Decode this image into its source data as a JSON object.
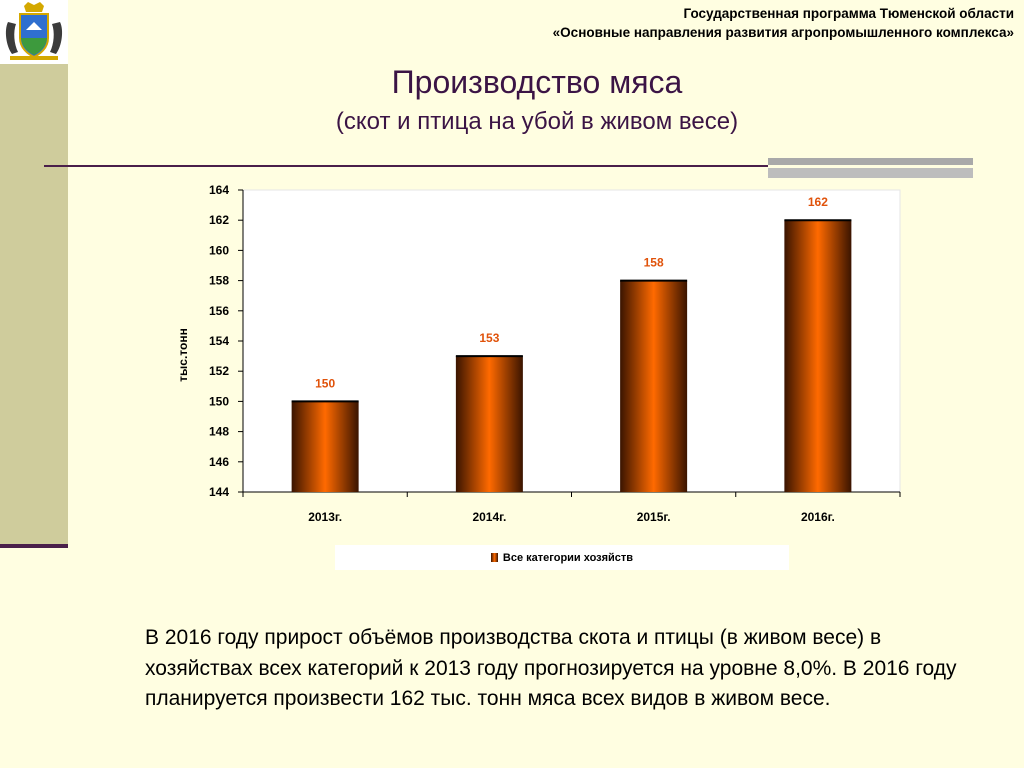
{
  "header": {
    "line1": "Государственная программа Тюменской области",
    "line2": "«Основные направления развития агропромышленного комплекса»"
  },
  "title": "Производство мяса",
  "subtitle": "(скот и птица на убой в живом весе)",
  "emblem_icon": "tyumen-coat-of-arms",
  "chart_data": {
    "type": "bar",
    "categories": [
      "2013г.",
      "2014г.",
      "2015г.",
      "2016г."
    ],
    "series": [
      {
        "name": "Все категории хозяйств",
        "values": [
          150,
          153,
          158,
          162
        ]
      }
    ],
    "data_labels": [
      "150",
      "153",
      "158",
      "162"
    ],
    "ylabel": "тыс.тонн",
    "xlabel": "",
    "ylim": [
      144,
      164
    ],
    "yticks": [
      144,
      146,
      148,
      150,
      152,
      154,
      156,
      158,
      160,
      162,
      164
    ],
    "grid": false,
    "legend_position": "bottom",
    "colors": {
      "bar_center": "#ff6a00",
      "bar_edge": "#3a1400",
      "data_label": "#e0520a"
    }
  },
  "body_text": "В 2016 году прирост объёмов производства скота и птицы (в живом весе) в хозяйствах всех категорий к 2013 году прогнозируется на уровне 8,0%. В 2016 году планируется произвести 162 тыс. тонн мяса всех видов в живом весе."
}
